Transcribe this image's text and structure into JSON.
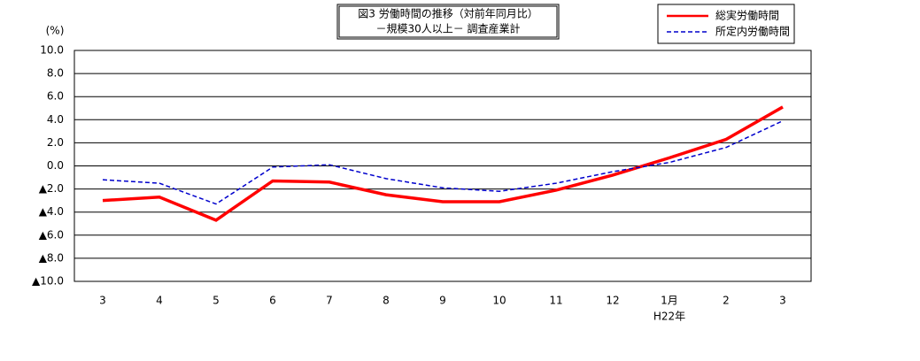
{
  "chart_data": {
    "type": "line",
    "title": [
      "図3 労働時間の推移（対前年同月比）",
      "－規模30人以上－ 調査産業計"
    ],
    "y_unit": "(%)",
    "categories": [
      "3",
      "4",
      "5",
      "6",
      "7",
      "8",
      "9",
      "10",
      "11",
      "12",
      "1月",
      "2",
      "3"
    ],
    "era_label": "H22年",
    "series": [
      {
        "name": "総実労働時間",
        "color": "#ff0000",
        "dash": false,
        "values": [
          -3.0,
          -2.7,
          -4.7,
          -1.3,
          -1.4,
          -2.5,
          -3.1,
          -3.1,
          -2.1,
          -0.8,
          0.7,
          2.3,
          5.1
        ]
      },
      {
        "name": "所定内労働時間",
        "color": "#0000cc",
        "dash": true,
        "values": [
          -1.2,
          -1.5,
          -3.3,
          -0.1,
          0.1,
          -1.1,
          -1.9,
          -2.2,
          -1.5,
          -0.5,
          0.3,
          1.6,
          3.9
        ]
      }
    ],
    "ylim": [
      -10,
      10
    ],
    "yticks": [
      {
        "value": 10,
        "label": "10.0"
      },
      {
        "value": 8,
        "label": "8.0"
      },
      {
        "value": 6,
        "label": "6.0"
      },
      {
        "value": 4,
        "label": "4.0"
      },
      {
        "value": 2,
        "label": "2.0"
      },
      {
        "value": 0,
        "label": "0.0"
      },
      {
        "value": -2,
        "label": "▲2.0"
      },
      {
        "value": -4,
        "label": "▲4.0"
      },
      {
        "value": -6,
        "label": "▲6.0"
      },
      {
        "value": -8,
        "label": "▲8.0"
      },
      {
        "value": -10,
        "label": "▲10.0"
      }
    ],
    "grid": true
  }
}
